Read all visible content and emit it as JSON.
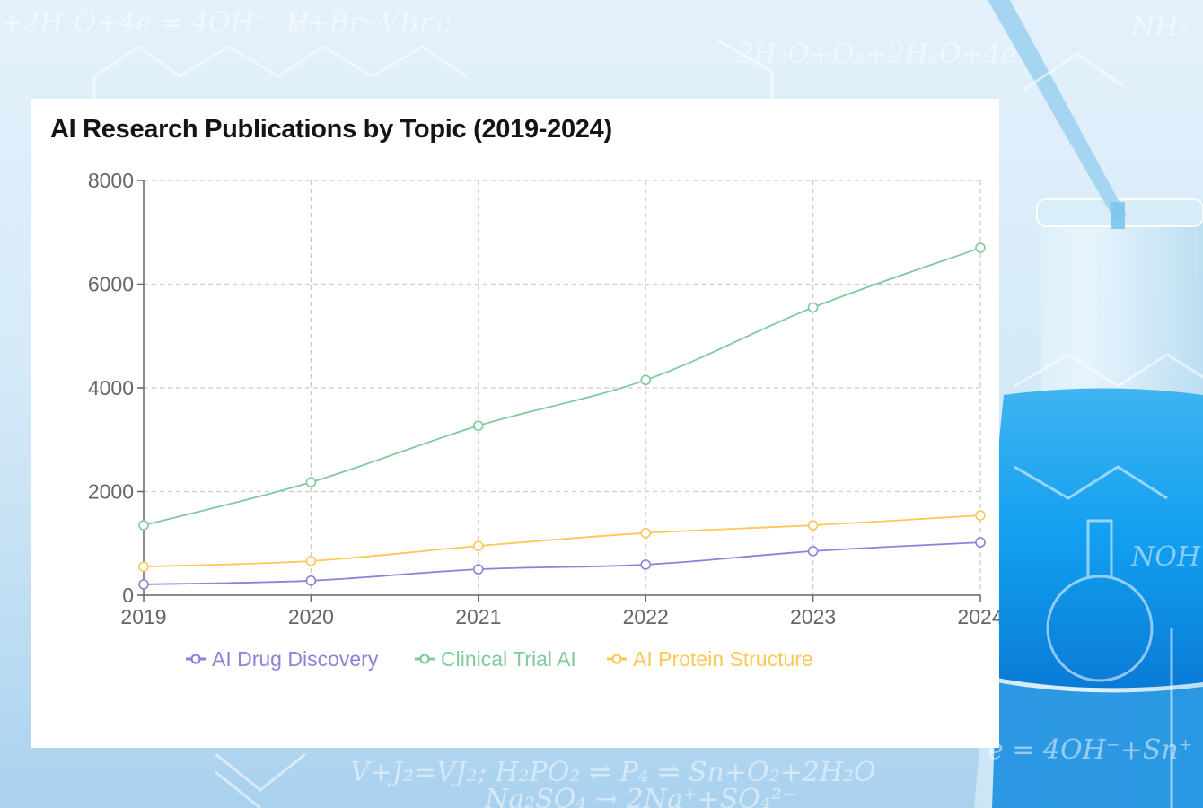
{
  "chart_data": {
    "type": "line",
    "title": "AI Research Publications by Topic (2019-2024)",
    "xlabel": "",
    "ylabel": "",
    "categories": [
      "2019",
      "2020",
      "2021",
      "2022",
      "2023",
      "2024"
    ],
    "ylim": [
      0,
      8000
    ],
    "yticks": [
      "0",
      "2000",
      "4000",
      "6000",
      "8000"
    ],
    "grid": true,
    "legend_position": "bottom",
    "series": [
      {
        "name": "AI Drug Discovery",
        "color": "#8884d8",
        "values": [
          210,
          280,
          500,
          590,
          850,
          1020
        ]
      },
      {
        "name": "Clinical Trial AI",
        "color": "#82ca9d",
        "values": [
          1350,
          2180,
          3270,
          4150,
          5550,
          6700
        ]
      },
      {
        "name": "AI Protein Structure",
        "color": "#ffc658",
        "values": [
          550,
          660,
          950,
          1200,
          1350,
          1540
        ]
      }
    ]
  }
}
